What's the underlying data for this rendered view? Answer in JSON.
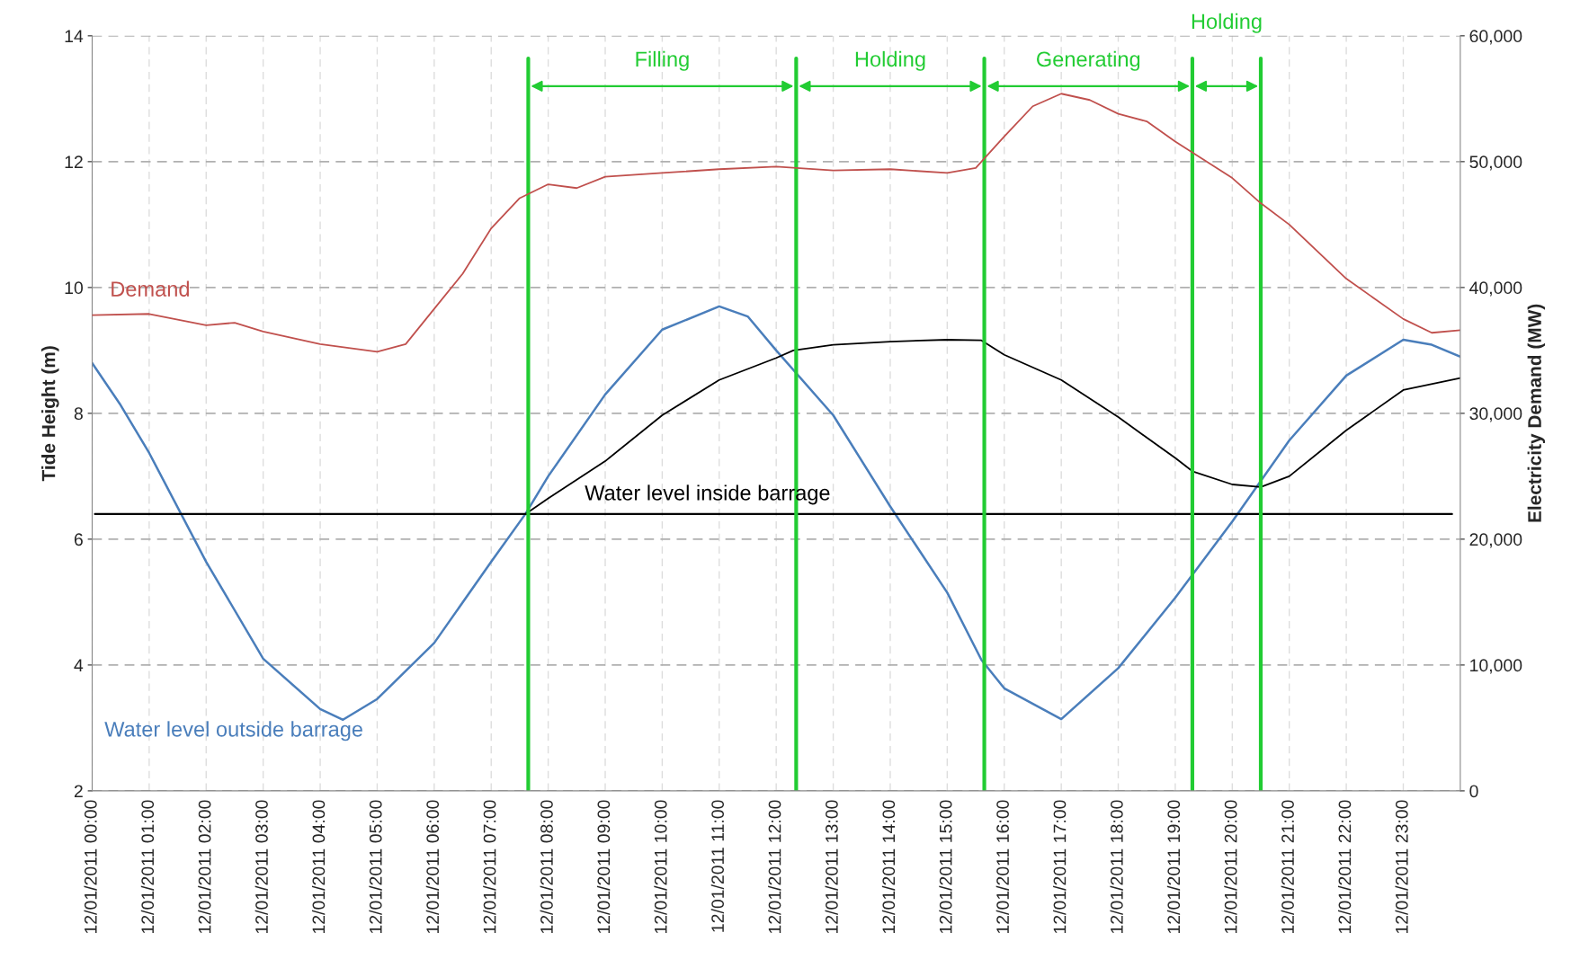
{
  "chart_data": {
    "type": "line",
    "xlim": [
      "2011-12-01T00:00",
      "2011-12-02T00:00"
    ],
    "xticks": [
      {
        "value": "2011-12-01T00:00",
        "label": "12/01/2011 00:00"
      },
      {
        "value": "2011-12-01T01:00",
        "label": "12/01/2011 01:00"
      },
      {
        "value": "2011-12-01T02:00",
        "label": "12/01/2011 02:00"
      },
      {
        "value": "2011-12-01T03:00",
        "label": "12/01/2011 03:00"
      },
      {
        "value": "2011-12-01T04:00",
        "label": "12/01/2011 04:00"
      },
      {
        "value": "2011-12-01T05:00",
        "label": "12/01/2011 05:00"
      },
      {
        "value": "2011-12-01T06:00",
        "label": "12/01/2011 06:00"
      },
      {
        "value": "2011-12-01T07:00",
        "label": "12/01/2011 07:00"
      },
      {
        "value": "2011-12-01T08:00",
        "label": "12/01/2011 08:00"
      },
      {
        "value": "2011-12-01T09:00",
        "label": "12/01/2011 09:00"
      },
      {
        "value": "2011-12-01T10:00",
        "label": "12/01/2011 10:00"
      },
      {
        "value": "2011-12-01T11:00",
        "label": "12/01/2011 11:00"
      },
      {
        "value": "2011-12-01T12:00",
        "label": "12/01/2011 12:00"
      },
      {
        "value": "2011-12-01T13:00",
        "label": "12/01/2011 13:00"
      },
      {
        "value": "2011-12-01T14:00",
        "label": "12/01/2011 14:00"
      },
      {
        "value": "2011-12-01T15:00",
        "label": "12/01/2011 15:00"
      },
      {
        "value": "2011-12-01T16:00",
        "label": "12/01/2011 16:00"
      },
      {
        "value": "2011-12-01T17:00",
        "label": "12/01/2011 17:00"
      },
      {
        "value": "2011-12-01T18:00",
        "label": "12/01/2011 18:00"
      },
      {
        "value": "2011-12-01T19:00",
        "label": "12/01/2011 19:00"
      },
      {
        "value": "2011-12-01T20:00",
        "label": "12/01/2011 20:00"
      },
      {
        "value": "2011-12-01T21:00",
        "label": "12/01/2011 21:00"
      },
      {
        "value": "2011-12-01T22:00",
        "label": "12/01/2011 22:00"
      },
      {
        "value": "2011-12-01T23:00",
        "label": "12/01/2011 23:00"
      }
    ],
    "ylabel": "Tide Height (m)",
    "y2label": "Electricity Demand (MW)",
    "ylim": [
      2,
      14
    ],
    "yticks": [
      2,
      4,
      6,
      8,
      10,
      12,
      14
    ],
    "y2lim": [
      0,
      60000
    ],
    "y2ticks": [
      0,
      {
        "value": 10000,
        "label": "10,000"
      },
      {
        "value": 20000,
        "label": "20,000"
      },
      {
        "value": 30000,
        "label": "30,000"
      },
      {
        "value": 40000,
        "label": "40,000"
      },
      {
        "value": 50000,
        "label": "50,000"
      },
      {
        "value": 60000,
        "label": "60,000"
      }
    ],
    "grid": true,
    "series": [
      {
        "name": "Demand",
        "color": "#c0504d",
        "axis": "y2",
        "x": [
          "2011-12-01T00:00",
          "2011-12-01T01:00",
          "2011-12-01T02:00",
          "2011-12-01T02:30",
          "2011-12-01T03:00",
          "2011-12-01T04:00",
          "2011-12-01T05:00",
          "2011-12-01T05:30",
          "2011-12-01T06:00",
          "2011-12-01T06:30",
          "2011-12-01T07:00",
          "2011-12-01T07:30",
          "2011-12-01T08:00",
          "2011-12-01T08:30",
          "2011-12-01T09:00",
          "2011-12-01T10:00",
          "2011-12-01T11:00",
          "2011-12-01T12:00",
          "2011-12-01T13:00",
          "2011-12-01T14:00",
          "2011-12-01T15:00",
          "2011-12-01T15:30",
          "2011-12-01T16:00",
          "2011-12-01T16:30",
          "2011-12-01T17:00",
          "2011-12-01T17:30",
          "2011-12-01T18:00",
          "2011-12-01T18:30",
          "2011-12-01T19:00",
          "2011-12-01T20:00",
          "2011-12-01T20:30",
          "2011-12-01T21:00",
          "2011-12-01T22:00",
          "2011-12-01T23:00",
          "2011-12-01T23:30",
          "2011-12-02T00:00"
        ],
        "values": [
          37800,
          37900,
          37000,
          37200,
          36500,
          35500,
          34900,
          35500,
          38300,
          41100,
          44700,
          47100,
          48200,
          47900,
          48800,
          49100,
          49400,
          49600,
          49300,
          49400,
          49100,
          49500,
          52000,
          54400,
          55400,
          54900,
          53800,
          53200,
          51600,
          48700,
          46700,
          45000,
          40700,
          37500,
          36400,
          36600
        ]
      },
      {
        "name": "Water level outside barrage",
        "color": "#4a7ebb",
        "x": [
          "2011-12-01T00:00",
          "2011-12-01T00:30",
          "2011-12-01T01:00",
          "2011-12-01T02:00",
          "2011-12-01T03:00",
          "2011-12-01T04:00",
          "2011-12-01T04:24",
          "2011-12-01T05:00",
          "2011-12-01T06:00",
          "2011-12-01T07:00",
          "2011-12-01T07:36",
          "2011-12-01T08:00",
          "2011-12-01T09:00",
          "2011-12-01T10:00",
          "2011-12-01T11:00",
          "2011-12-01T11:30",
          "2011-12-01T12:00",
          "2011-12-01T13:00",
          "2011-12-01T14:00",
          "2011-12-01T15:00",
          "2011-12-01T15:36",
          "2011-12-01T16:00",
          "2011-12-01T17:00",
          "2011-12-01T18:00",
          "2011-12-01T19:00",
          "2011-12-01T20:00",
          "2011-12-01T21:00",
          "2011-12-01T22:00",
          "2011-12-01T23:00",
          "2011-12-01T23:30",
          "2011-12-02T00:00"
        ],
        "values": [
          8.8,
          8.13,
          7.37,
          5.64,
          4.1,
          3.3,
          3.13,
          3.46,
          4.35,
          5.64,
          6.4,
          7.0,
          8.3,
          9.33,
          9.7,
          9.54,
          9.0,
          7.97,
          6.52,
          5.15,
          4.08,
          3.63,
          3.14,
          3.95,
          5.07,
          6.28,
          7.57,
          8.6,
          9.17,
          9.09,
          8.9
        ]
      },
      {
        "name": "Water level inside barrage",
        "color": "#000000",
        "x": [
          "2011-12-01T07:36",
          "2011-12-01T08:00",
          "2011-12-01T09:00",
          "2011-12-01T10:00",
          "2011-12-01T11:00",
          "2011-12-01T12:00",
          "2011-12-01T12:18",
          "2011-12-01T13:00",
          "2011-12-01T14:00",
          "2011-12-01T15:00",
          "2011-12-01T15:36",
          "2011-12-01T16:00",
          "2011-12-01T17:00",
          "2011-12-01T18:00",
          "2011-12-01T19:00",
          "2011-12-01T19:18",
          "2011-12-01T20:00",
          "2011-12-01T20:30",
          "2011-12-01T21:00",
          "2011-12-01T22:00",
          "2011-12-01T23:00",
          "2011-12-02T00:00"
        ],
        "values": [
          6.4,
          6.65,
          7.24,
          7.97,
          8.53,
          8.88,
          9.0,
          9.09,
          9.14,
          9.17,
          9.16,
          8.93,
          8.53,
          7.94,
          7.29,
          7.08,
          6.87,
          6.83,
          7.0,
          7.73,
          8.37,
          8.56
        ]
      }
    ],
    "ref_lines": [
      {
        "axis": "y",
        "value": 6.4,
        "color": "#000000"
      },
      {
        "axis": "x",
        "value": "2011-12-01T07:39",
        "color": "#22cc33"
      },
      {
        "axis": "x",
        "value": "2011-12-01T12:21",
        "color": "#22cc33"
      },
      {
        "axis": "x",
        "value": "2011-12-01T15:39",
        "color": "#22cc33"
      },
      {
        "axis": "x",
        "value": "2011-12-01T19:18",
        "color": "#22cc33"
      },
      {
        "axis": "x",
        "value": "2011-12-01T20:30",
        "color": "#22cc33"
      }
    ],
    "annotations": [
      "Filling",
      "Holding",
      "Generating",
      "Holding"
    ]
  }
}
